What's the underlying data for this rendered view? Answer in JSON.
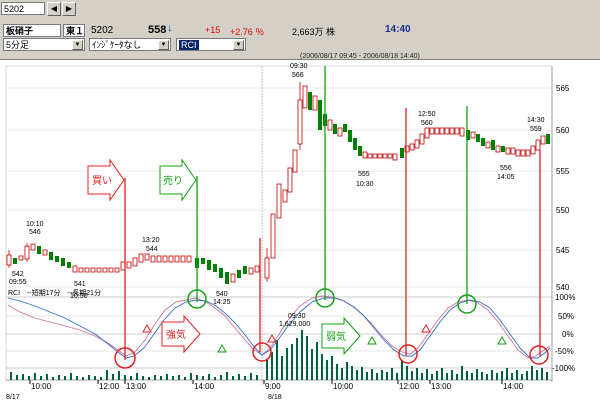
{
  "toolbar": {
    "symbol_input": "5202",
    "name": "板硝子",
    "market": "東１",
    "code": "5202",
    "price": "558",
    "change": "+15",
    "change_pct": "+2.76 ％",
    "volume": "2,663万 株",
    "time": "14:40",
    "interval": "5分足",
    "indicator": "ｲﾝｼﾞｹｰﾀなし",
    "oscillator": "RCI"
  },
  "chart": {
    "range": "(2006/08/17 09:45 - 2006/08/18 14:40)",
    "price_ticks": [
      "565",
      "560",
      "555",
      "550",
      "545",
      "540"
    ],
    "rci_ticks": [
      "100%",
      "50%",
      "0%",
      "-50%",
      "-100%"
    ],
    "time_ticks": [
      "10:00",
      "12:00",
      "13:00",
      "14:00",
      "9:00",
      "10:00",
      "12:00",
      "13:00",
      "14:00"
    ],
    "dates": [
      "8/17",
      "8/18"
    ],
    "rci_legend": "RCI　--短期17分　--長期21分",
    "annotations": {
      "a1": "10:10",
      "a2": "546",
      "a3": "542",
      "a4": "09:55",
      "a5": "541",
      "a6": "10:50",
      "a7": "13:20",
      "a8": "544",
      "a9": "540",
      "a10": "14:25",
      "a11": "09:30",
      "a12": "566",
      "a13": "09:30",
      "a14": "1,629,000",
      "a15": "555",
      "a16": "10:30",
      "a17": "12:50",
      "a18": "560",
      "a19": "556",
      "a20": "14:05",
      "a21": "14:30",
      "a22": "559"
    },
    "signals": {
      "buy": "買い",
      "sell": "売り",
      "strong": "強気",
      "weak": "弱気"
    }
  },
  "colors": {
    "up": "#c00000",
    "down": "#008000",
    "rci_short": "#d070a0",
    "rci_long": "#3070c0",
    "volume": "#006040"
  },
  "chart_data": {
    "type": "candlestick",
    "x": [
      "8/17 09:45",
      "8/18 14:40"
    ],
    "price_ylim": [
      538,
      567
    ],
    "rci_ylim": [
      -100,
      100
    ],
    "key_points": [
      {
        "time": "8/17 09:55",
        "price": 542
      },
      {
        "time": "8/17 10:10",
        "price": 546
      },
      {
        "time": "8/17 10:50",
        "price": 541
      },
      {
        "time": "8/17 13:20",
        "price": 544
      },
      {
        "time": "8/17 14:25",
        "price": 540
      },
      {
        "time": "8/18 09:30",
        "price": 566,
        "volume": 1629000
      },
      {
        "time": "8/18 10:30",
        "price": 555
      },
      {
        "time": "8/18 12:50",
        "price": 560
      },
      {
        "time": "8/18 14:05",
        "price": 556
      },
      {
        "time": "8/18 14:30",
        "price": 559
      }
    ]
  }
}
